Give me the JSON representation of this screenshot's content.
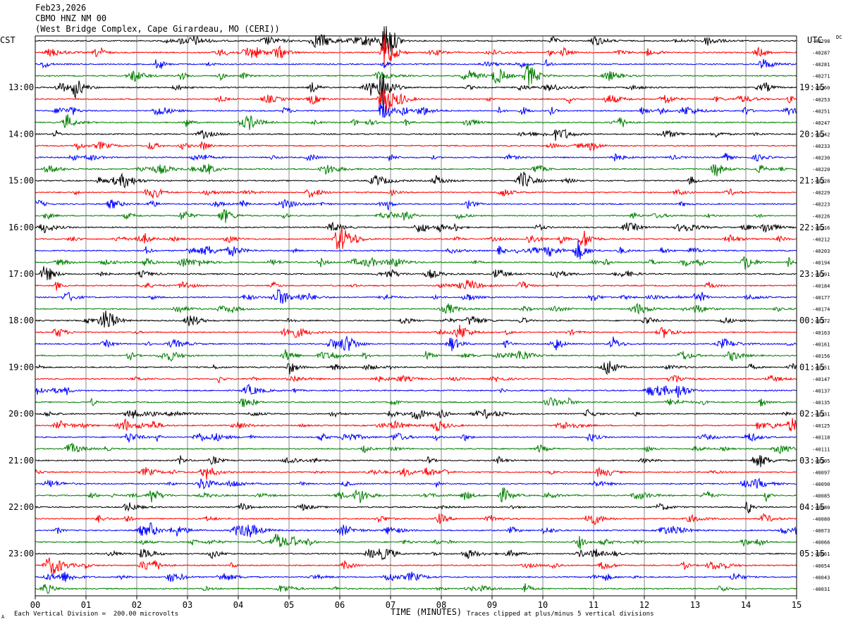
{
  "header": {
    "date": "Feb23,2026",
    "station": "CBMO HNZ NM 00",
    "location": "(West Bridge Complex, Cape Girardeau, MO (CERI))"
  },
  "left_timezone": "CST",
  "right_timezone": "UTC",
  "dc_label": "DC",
  "footer": {
    "scale_note": "Each Vertical Division =  200.00 microvolts",
    "clip_note": "Traces clipped at plus/minus 5 vertical divisions",
    "corner_mark": "A"
  },
  "colors": {
    "black": "#000000",
    "red": "#ff0000",
    "blue": "#0000ff",
    "green": "#007f00",
    "grid": "#888888"
  },
  "chart_data": {
    "type": "line",
    "title": "",
    "xlabel": "TIME (MINUTES)",
    "xlim": [
      0,
      15
    ],
    "x_ticks": [
      "00",
      "01",
      "02",
      "03",
      "04",
      "05",
      "06",
      "07",
      "08",
      "09",
      "10",
      "11",
      "12",
      "13",
      "14",
      "15"
    ],
    "left_hour_labels": [
      "13:00",
      "14:00",
      "15:00",
      "16:00",
      "17:00",
      "18:00",
      "19:00",
      "20:00",
      "21:00",
      "22:00",
      "23:00"
    ],
    "right_hour_labels": [
      "19:15",
      "20:15",
      "21:15",
      "22:15",
      "23:15",
      "00:15",
      "01:15",
      "02:15",
      "03:15",
      "04:15",
      "05:15"
    ],
    "trace_color_cycle": [
      "black",
      "red",
      "blue",
      "green"
    ],
    "dc_offsets": [
      "-40298",
      "-40287",
      "-40281",
      "-40271",
      "-40260",
      "-40253",
      "-40251",
      "-40247",
      "-40242",
      "-40233",
      "-40230",
      "-40220",
      "-40228",
      "-40229",
      "-40223",
      "-40226",
      "-40216",
      "-40212",
      "-40203",
      "-40194",
      "-40191",
      "-40184",
      "-40177",
      "-40174",
      "-40172",
      "-40163",
      "-40161",
      "-40156",
      "-40151",
      "-40147",
      "-40137",
      "-40135",
      "-40131",
      "-40125",
      "-40118",
      "-40111",
      "-40105",
      "-40097",
      "-40090",
      "-40085",
      "-40080",
      "-40080",
      "-40073",
      "-40066",
      "-40061",
      "-40054",
      "-40043",
      "-40031"
    ],
    "events": [
      {
        "trace": 0,
        "minute": 6.9,
        "amplitude": 5
      },
      {
        "trace": 1,
        "minute": 6.9,
        "amplitude": 5
      },
      {
        "trace": 4,
        "minute": 6.85,
        "amplitude": 4
      },
      {
        "trace": 5,
        "minute": 6.85,
        "amplitude": 4
      },
      {
        "trace": 6,
        "minute": 6.85,
        "amplitude": 3
      },
      {
        "trace": 4,
        "minute": 0.8,
        "amplitude": 2.5
      },
      {
        "trace": 3,
        "minute": 9.1,
        "amplitude": 2.5
      },
      {
        "trace": 3,
        "minute": 9.7,
        "amplitude": 2.5
      },
      {
        "trace": 17,
        "minute": 10.8,
        "amplitude": 2.5
      },
      {
        "trace": 18,
        "minute": 10.7,
        "amplitude": 2.5
      },
      {
        "trace": 20,
        "minute": 0.2,
        "amplitude": 2.5
      },
      {
        "trace": 19,
        "minute": 14.0,
        "amplitude": 2
      },
      {
        "trace": 11,
        "minute": 13.4,
        "amplitude": 2
      },
      {
        "trace": 33,
        "minute": 14.9,
        "amplitude": 2
      },
      {
        "trace": 32,
        "minute": 7.5,
        "amplitude": 2
      },
      {
        "trace": 30,
        "minute": 12.7,
        "amplitude": 2
      },
      {
        "trace": 26,
        "minute": 8.2,
        "amplitude": 2
      },
      {
        "trace": 39,
        "minute": 2.3,
        "amplitude": 2
      },
      {
        "trace": 47,
        "minute": 0.2,
        "amplitude": 1.5
      }
    ]
  }
}
